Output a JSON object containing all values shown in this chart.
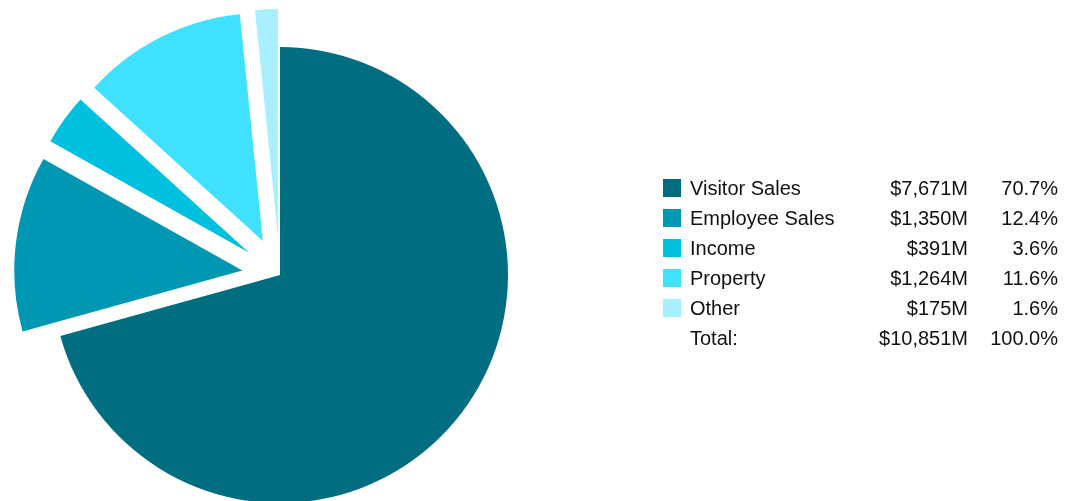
{
  "chart_data": {
    "type": "pie",
    "categories": [
      "Visitor Sales",
      "Employee Sales",
      "Income",
      "Property",
      "Other"
    ],
    "values": [
      7671,
      1350,
      391,
      1264,
      175
    ],
    "colors": [
      "#006e80",
      "#0097b2",
      "#00c0e0",
      "#40e0ff",
      "#a8f0ff"
    ],
    "value_labels": [
      "$7,671M",
      "$1,350M",
      "$391M",
      "$1,264M",
      "$175M"
    ],
    "annotations": [
      "70.7%",
      "12.4%",
      "3.6%",
      "11.6%",
      "1.6%",
      "Total:",
      "$10,851M",
      "100.0%"
    ],
    "legend": "right"
  }
}
